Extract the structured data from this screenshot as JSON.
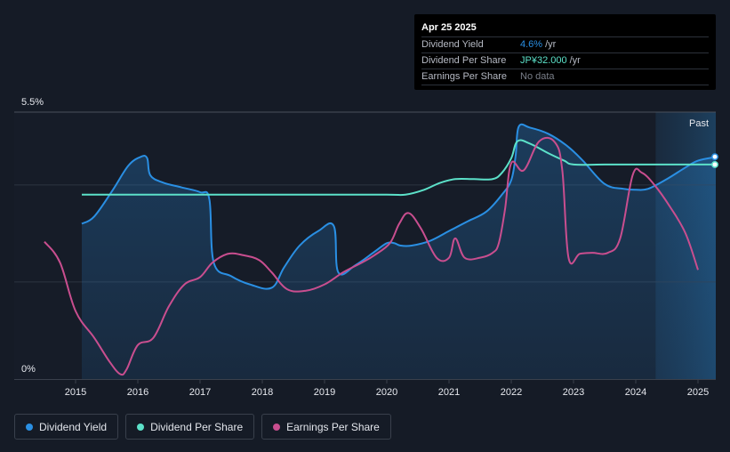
{
  "tooltip": {
    "date": "Apr 25 2025",
    "rows": [
      {
        "label": "Dividend Yield",
        "value": "4.6%",
        "unit": "/yr",
        "color": "#2a8fe3"
      },
      {
        "label": "Dividend Per Share",
        "value": "JP¥32.000",
        "unit": "/yr",
        "color": "#5ce1c9"
      },
      {
        "label": "Earnings Per Share",
        "value": "No data",
        "unit": "",
        "color": "#7a7f89"
      }
    ]
  },
  "past_label": "Past",
  "legend": [
    {
      "label": "Dividend Yield",
      "color": "#2a8fe3"
    },
    {
      "label": "Dividend Per Share",
      "color": "#5ce1c9"
    },
    {
      "label": "Earnings Per Share",
      "color": "#c94e8f"
    }
  ],
  "chart_data": {
    "type": "line",
    "xlim": [
      2014.08,
      2025.3
    ],
    "ylim": [
      0,
      5.5
    ],
    "ytick_labels": [
      "5.5%",
      "0%"
    ],
    "x_ticks": [
      2015,
      2016,
      2017,
      2018,
      2019,
      2020,
      2021,
      2022,
      2023,
      2024,
      2025
    ],
    "x_tick_labels": [
      "2015",
      "2016",
      "2017",
      "2018",
      "2019",
      "2020",
      "2021",
      "2022",
      "2023",
      "2024",
      "2025"
    ],
    "gridlines": [
      5.5,
      4.0,
      2.0
    ],
    "past_region_start": 2024.32,
    "series": [
      {
        "name": "Dividend Yield",
        "color": "#2a8fe3",
        "area": true,
        "points": [
          [
            2015.1,
            3.2
          ],
          [
            2015.3,
            3.35
          ],
          [
            2015.6,
            3.9
          ],
          [
            2015.85,
            4.4
          ],
          [
            2016.05,
            4.58
          ],
          [
            2016.15,
            4.55
          ],
          [
            2016.2,
            4.2
          ],
          [
            2016.4,
            4.05
          ],
          [
            2016.7,
            3.95
          ],
          [
            2017.0,
            3.85
          ],
          [
            2017.15,
            3.7
          ],
          [
            2017.22,
            2.4
          ],
          [
            2017.5,
            2.12
          ],
          [
            2017.8,
            1.95
          ],
          [
            2018.15,
            1.88
          ],
          [
            2018.35,
            2.3
          ],
          [
            2018.6,
            2.75
          ],
          [
            2018.9,
            3.05
          ],
          [
            2019.15,
            3.15
          ],
          [
            2019.22,
            2.2
          ],
          [
            2019.5,
            2.35
          ],
          [
            2019.8,
            2.62
          ],
          [
            2020.0,
            2.8
          ],
          [
            2020.12,
            2.8
          ],
          [
            2020.22,
            2.75
          ],
          [
            2020.4,
            2.75
          ],
          [
            2020.7,
            2.85
          ],
          [
            2021.0,
            3.05
          ],
          [
            2021.3,
            3.25
          ],
          [
            2021.6,
            3.45
          ],
          [
            2021.85,
            3.8
          ],
          [
            2022.0,
            4.1
          ],
          [
            2022.07,
            4.6
          ],
          [
            2022.12,
            5.2
          ],
          [
            2022.3,
            5.18
          ],
          [
            2022.6,
            5.05
          ],
          [
            2022.9,
            4.8
          ],
          [
            2023.15,
            4.5
          ],
          [
            2023.5,
            4.02
          ],
          [
            2023.8,
            3.92
          ],
          [
            2024.0,
            3.9
          ],
          [
            2024.2,
            3.92
          ],
          [
            2024.5,
            4.12
          ],
          [
            2024.8,
            4.36
          ],
          [
            2025.0,
            4.5
          ],
          [
            2025.3,
            4.58
          ]
        ]
      },
      {
        "name": "Dividend Per Share",
        "color": "#5ce1c9",
        "area": false,
        "points": [
          [
            2015.1,
            3.8
          ],
          [
            2016.0,
            3.8
          ],
          [
            2017.0,
            3.8
          ],
          [
            2018.0,
            3.8
          ],
          [
            2019.0,
            3.8
          ],
          [
            2020.0,
            3.8
          ],
          [
            2020.3,
            3.8
          ],
          [
            2020.6,
            3.9
          ],
          [
            2020.85,
            4.04
          ],
          [
            2021.1,
            4.12
          ],
          [
            2021.4,
            4.12
          ],
          [
            2021.7,
            4.12
          ],
          [
            2021.85,
            4.25
          ],
          [
            2022.0,
            4.55
          ],
          [
            2022.1,
            4.9
          ],
          [
            2022.3,
            4.85
          ],
          [
            2022.6,
            4.65
          ],
          [
            2022.85,
            4.5
          ],
          [
            2023.0,
            4.42
          ],
          [
            2023.5,
            4.42
          ],
          [
            2024.0,
            4.42
          ],
          [
            2024.5,
            4.42
          ],
          [
            2025.0,
            4.42
          ],
          [
            2025.3,
            4.42
          ]
        ]
      },
      {
        "name": "Earnings Per Share",
        "color": "#c94e8f",
        "area": false,
        "points": [
          [
            2014.5,
            2.83
          ],
          [
            2014.75,
            2.4
          ],
          [
            2015.0,
            1.4
          ],
          [
            2015.3,
            0.85
          ],
          [
            2015.55,
            0.35
          ],
          [
            2015.72,
            0.1
          ],
          [
            2015.82,
            0.2
          ],
          [
            2016.0,
            0.7
          ],
          [
            2016.25,
            0.85
          ],
          [
            2016.5,
            1.5
          ],
          [
            2016.75,
            1.95
          ],
          [
            2017.0,
            2.1
          ],
          [
            2017.2,
            2.4
          ],
          [
            2017.45,
            2.58
          ],
          [
            2017.7,
            2.55
          ],
          [
            2017.95,
            2.45
          ],
          [
            2018.15,
            2.2
          ],
          [
            2018.4,
            1.85
          ],
          [
            2018.7,
            1.82
          ],
          [
            2019.0,
            1.95
          ],
          [
            2019.3,
            2.2
          ],
          [
            2019.6,
            2.4
          ],
          [
            2019.8,
            2.55
          ],
          [
            2020.05,
            2.8
          ],
          [
            2020.2,
            3.2
          ],
          [
            2020.35,
            3.42
          ],
          [
            2020.55,
            3.1
          ],
          [
            2020.8,
            2.5
          ],
          [
            2021.0,
            2.5
          ],
          [
            2021.1,
            2.9
          ],
          [
            2021.25,
            2.5
          ],
          [
            2021.5,
            2.5
          ],
          [
            2021.7,
            2.6
          ],
          [
            2021.8,
            2.8
          ],
          [
            2021.9,
            3.5
          ],
          [
            2022.0,
            4.45
          ],
          [
            2022.2,
            4.3
          ],
          [
            2022.45,
            4.9
          ],
          [
            2022.7,
            4.88
          ],
          [
            2022.82,
            4.3
          ],
          [
            2022.92,
            2.5
          ],
          [
            2023.1,
            2.58
          ],
          [
            2023.3,
            2.6
          ],
          [
            2023.55,
            2.6
          ],
          [
            2023.75,
            2.9
          ],
          [
            2023.95,
            4.2
          ],
          [
            2024.1,
            4.25
          ],
          [
            2024.3,
            4.0
          ],
          [
            2024.55,
            3.55
          ],
          [
            2024.8,
            3.0
          ],
          [
            2025.0,
            2.25
          ]
        ]
      }
    ]
  }
}
